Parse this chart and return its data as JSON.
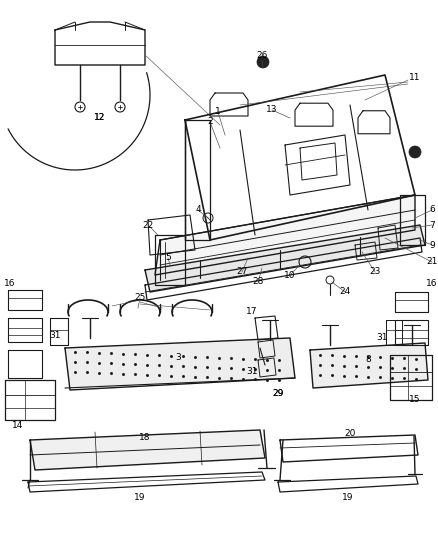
{
  "bg_color": "#ffffff",
  "line_color": "#1a1a1a",
  "label_color": "#000000",
  "label_fontsize": 6.5,
  "fig_width": 4.38,
  "fig_height": 5.33,
  "dpi": 100
}
